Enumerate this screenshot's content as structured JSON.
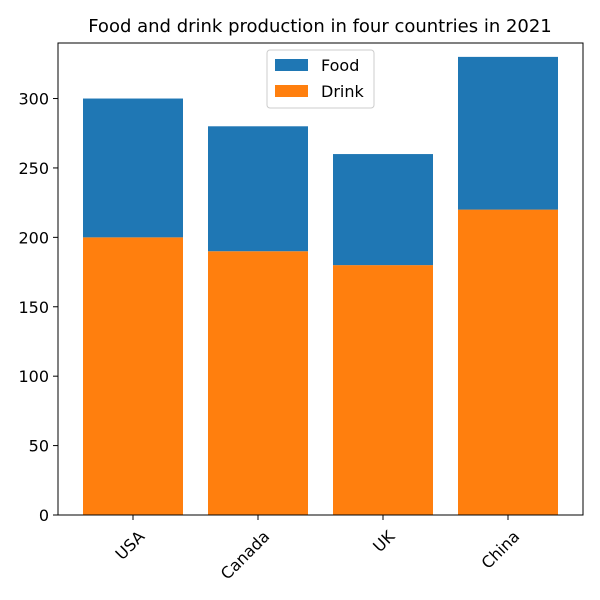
{
  "chart_data": {
    "type": "bar",
    "stacked": true,
    "title": "Food and drink production in four countries in 2021",
    "xlabel": "",
    "ylabel": "",
    "categories": [
      "USA",
      "Canada",
      "UK",
      "China"
    ],
    "series": [
      {
        "name": "Drink",
        "values": [
          200,
          190,
          180,
          220
        ],
        "color": "#ff7f0e"
      },
      {
        "name": "Food",
        "values": [
          100,
          90,
          80,
          110
        ],
        "color": "#1f77b4"
      }
    ],
    "legend_order": [
      "Food",
      "Drink"
    ],
    "ylim": [
      0,
      340
    ],
    "yticks": [
      0,
      50,
      100,
      150,
      200,
      250,
      300
    ],
    "grid": false,
    "legend_position": "top-center",
    "xtick_rotation": -45
  }
}
